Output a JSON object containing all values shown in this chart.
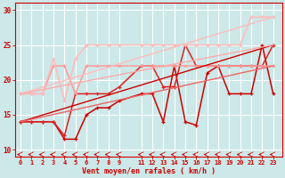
{
  "bg_color": "#cce8e8",
  "grid_color": "#ffffff",
  "xlabel": "Vent moyen/en rafales ( km/h )",
  "ylabel_ticks": [
    10,
    15,
    20,
    25,
    30
  ],
  "xticks": [
    0,
    1,
    2,
    3,
    4,
    5,
    6,
    7,
    8,
    9,
    11,
    12,
    13,
    14,
    15,
    16,
    17,
    18,
    19,
    20,
    21,
    22,
    23
  ],
  "xlim": [
    -0.5,
    23.8
  ],
  "ylim": [
    9.0,
    31.0
  ],
  "series": [
    {
      "x": [
        0,
        1,
        2,
        3,
        4,
        5,
        6,
        7,
        8,
        9,
        11,
        12,
        13,
        14,
        15,
        16,
        17,
        18,
        19,
        20,
        21,
        22,
        23
      ],
      "y": [
        14,
        14,
        14,
        14,
        11.5,
        11.5,
        15,
        16,
        16,
        17,
        18,
        18,
        14,
        22,
        14,
        13.5,
        21,
        22,
        18,
        18,
        18,
        25,
        18
      ],
      "color": "#cc0000",
      "lw": 1.1,
      "marker": "+"
    },
    {
      "x": [
        0,
        1,
        2,
        3,
        4,
        5,
        6,
        7,
        8,
        9,
        11,
        12,
        13,
        14,
        15,
        16,
        17,
        18,
        19,
        20,
        21,
        22,
        23
      ],
      "y": [
        14,
        14,
        14,
        14,
        12,
        18,
        18,
        18,
        18,
        19,
        22,
        22,
        19,
        19,
        25,
        22,
        22,
        22,
        22,
        22,
        22,
        22,
        25
      ],
      "color": "#dd2222",
      "lw": 1.1,
      "marker": "+"
    },
    {
      "x": [
        0,
        1,
        2,
        3,
        4,
        5,
        6,
        7,
        8,
        9,
        11,
        12,
        13,
        14,
        15,
        16,
        17,
        18,
        19,
        20,
        21,
        22,
        23
      ],
      "y": [
        18,
        18,
        18,
        22,
        22,
        18,
        22,
        22,
        22,
        22,
        22,
        22,
        22,
        22,
        22,
        22,
        22,
        22,
        22,
        22,
        22,
        22,
        22
      ],
      "color": "#ff9999",
      "lw": 1.1,
      "marker": "+"
    },
    {
      "x": [
        0,
        1,
        2,
        3,
        4,
        5,
        6,
        7,
        8,
        9,
        11,
        12,
        13,
        14,
        15,
        16,
        17,
        18,
        19,
        20,
        21,
        22,
        23
      ],
      "y": [
        18,
        18,
        18,
        23,
        17,
        23,
        25,
        25,
        25,
        25,
        25,
        25,
        25,
        25,
        25,
        25,
        25,
        25,
        25,
        25,
        29,
        29,
        29
      ],
      "color": "#ffbbbb",
      "lw": 1.1,
      "marker": "+"
    },
    {
      "x": [
        0,
        23
      ],
      "y": [
        14,
        25
      ],
      "color": "#cc0000",
      "lw": 1.0,
      "marker": null
    },
    {
      "x": [
        0,
        23
      ],
      "y": [
        18,
        29
      ],
      "color": "#ffbbbb",
      "lw": 1.0,
      "marker": null
    },
    {
      "x": [
        0,
        23
      ],
      "y": [
        14,
        22
      ],
      "color": "#ee6666",
      "lw": 1.0,
      "marker": null
    },
    {
      "x": [
        0,
        23
      ],
      "y": [
        18,
        25
      ],
      "color": "#ffaaaa",
      "lw": 1.0,
      "marker": null
    }
  ],
  "wind_arrows": {
    "x_positions": [
      0,
      1,
      2,
      3,
      4,
      5,
      6,
      7,
      8,
      9,
      11,
      12,
      13,
      14,
      15,
      16,
      17,
      18,
      19,
      20,
      21,
      22,
      23
    ],
    "y": 9.3,
    "color": "#cc0000"
  }
}
